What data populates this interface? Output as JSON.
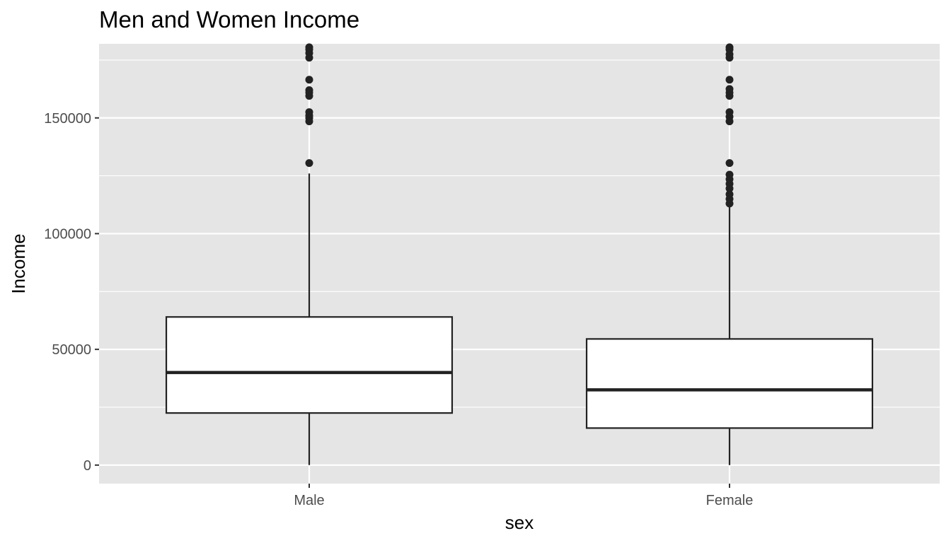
{
  "chart_data": {
    "type": "boxplot",
    "title": "Men and Women Income",
    "xlabel": "sex",
    "ylabel": "Income",
    "categories": [
      "Male",
      "Female"
    ],
    "ylim": [
      -8000,
      182000
    ],
    "y_ticks": [
      0,
      50000,
      100000,
      150000
    ],
    "y_tick_labels": [
      "0",
      "50000",
      "100000",
      "150000"
    ],
    "grid": true,
    "boxes": [
      {
        "category": "Male",
        "whisker_low": 0,
        "q1": 22500,
        "median": 40000,
        "q3": 64000,
        "whisker_high": 126000,
        "outliers": [
          130500,
          148500,
          150000,
          151000,
          152500,
          159500,
          161000,
          162000,
          166500,
          176000,
          178000,
          179500,
          180500
        ]
      },
      {
        "category": "Female",
        "whisker_low": 0,
        "q1": 16000,
        "median": 32500,
        "q3": 54500,
        "whisker_high": 112000,
        "outliers": [
          113000,
          115000,
          117000,
          119500,
          121500,
          123500,
          125500,
          130500,
          148500,
          150500,
          152500,
          159500,
          161000,
          162500,
          166500,
          176000,
          177500,
          179500,
          180500
        ]
      }
    ],
    "colors": {
      "panel_background": "#e5e5e5",
      "grid_major": "#ffffff",
      "box_fill": "#ffffff",
      "box_line": "#222222",
      "outlier": "#222222",
      "tick_label": "#4d4d4d"
    }
  }
}
